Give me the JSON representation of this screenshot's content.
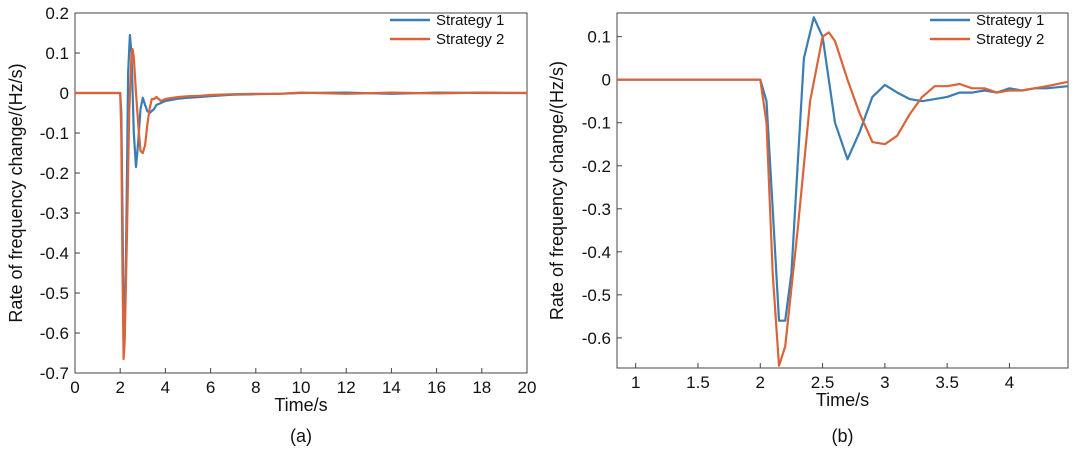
{
  "colors": {
    "strategy1": "#3A7DB3",
    "strategy2": "#D9643A"
  },
  "chart_data": [
    {
      "type": "line",
      "caption": "(a)",
      "xlabel": "Time/s",
      "ylabel": "Rate of frequency change/(Hz/s)",
      "xlim": [
        0,
        20
      ],
      "ylim": [
        -0.7,
        0.2
      ],
      "xticks": [
        "0",
        "2",
        "4",
        "6",
        "8",
        "10",
        "12",
        "14",
        "16",
        "18",
        "20"
      ],
      "yticks": [
        "0.2",
        "0.1",
        "0",
        "-0.1",
        "-0.2",
        "-0.3",
        "-0.4",
        "-0.5",
        "-0.6",
        "-0.7"
      ],
      "legend": "top-right",
      "grid": false,
      "series": [
        {
          "name": "Strategy 1",
          "x": [
            0,
            2.0,
            2.05,
            2.1,
            2.15,
            2.2,
            2.25,
            2.3,
            2.35,
            2.43,
            2.5,
            2.6,
            2.7,
            2.8,
            2.9,
            3.0,
            3.1,
            3.2,
            3.3,
            3.4,
            3.5,
            3.6,
            3.8,
            4.0,
            4.3,
            4.6,
            5.0,
            5.5,
            6.0,
            6.5,
            7.0,
            8.0,
            9.0,
            10.0,
            12.0,
            14.0,
            16.0,
            18.0,
            20.0
          ],
          "y": [
            0,
            0,
            -0.05,
            -0.3,
            -0.56,
            -0.56,
            -0.45,
            -0.2,
            0.05,
            0.145,
            0.1,
            -0.1,
            -0.185,
            -0.12,
            -0.04,
            -0.012,
            -0.03,
            -0.045,
            -0.05,
            -0.045,
            -0.04,
            -0.03,
            -0.025,
            -0.02,
            -0.017,
            -0.014,
            -0.012,
            -0.01,
            -0.008,
            -0.006,
            -0.004,
            -0.003,
            -0.002,
            0,
            0.001,
            -0.002,
            0.001,
            0,
            0
          ]
        },
        {
          "name": "Strategy 2",
          "x": [
            0,
            2.0,
            2.05,
            2.1,
            2.15,
            2.2,
            2.3,
            2.4,
            2.5,
            2.55,
            2.6,
            2.7,
            2.8,
            2.9,
            3.0,
            3.1,
            3.2,
            3.3,
            3.4,
            3.5,
            3.6,
            3.8,
            4.0,
            4.3,
            4.6,
            5.0,
            5.5,
            6.0,
            6.5,
            7.0,
            8.0,
            9.0,
            10.0,
            12.0,
            14.0,
            16.0,
            18.0,
            20.0
          ],
          "y": [
            0,
            0,
            -0.1,
            -0.45,
            -0.665,
            -0.62,
            -0.35,
            -0.05,
            0.1,
            0.11,
            0.09,
            0.0,
            -0.08,
            -0.145,
            -0.15,
            -0.13,
            -0.08,
            -0.04,
            -0.015,
            -0.015,
            -0.01,
            -0.02,
            -0.015,
            -0.012,
            -0.01,
            -0.008,
            -0.007,
            -0.005,
            -0.004,
            -0.003,
            -0.002,
            -0.002,
            0.001,
            -0.002,
            0.001,
            -0.001,
            0.001,
            0
          ]
        }
      ]
    },
    {
      "type": "line",
      "caption": "(b)",
      "xlabel": "Time/s",
      "ylabel": "Rate of frequency change/(Hz/s)",
      "xlim": [
        0.85,
        4.47
      ],
      "ylim": [
        -0.67,
        0.155
      ],
      "xticks": [
        "1",
        "1.5",
        "2",
        "2.5",
        "3",
        "3.5",
        "4"
      ],
      "yticks": [
        "0.1",
        "0",
        "-0.1",
        "-0.2",
        "-0.3",
        "-0.4",
        "-0.5",
        "-0.6"
      ],
      "legend": "top-right",
      "grid": false,
      "series": [
        {
          "name": "Strategy 1",
          "x": [
            0.85,
            2.0,
            2.05,
            2.1,
            2.15,
            2.2,
            2.25,
            2.3,
            2.35,
            2.43,
            2.5,
            2.6,
            2.7,
            2.8,
            2.9,
            3.0,
            3.1,
            3.2,
            3.3,
            3.4,
            3.5,
            3.6,
            3.7,
            3.8,
            3.9,
            4.0,
            4.1,
            4.2,
            4.3,
            4.47
          ],
          "y": [
            0,
            0,
            -0.05,
            -0.3,
            -0.56,
            -0.56,
            -0.45,
            -0.2,
            0.05,
            0.145,
            0.1,
            -0.1,
            -0.185,
            -0.12,
            -0.04,
            -0.012,
            -0.03,
            -0.045,
            -0.05,
            -0.045,
            -0.04,
            -0.03,
            -0.03,
            -0.025,
            -0.03,
            -0.02,
            -0.025,
            -0.02,
            -0.02,
            -0.015
          ]
        },
        {
          "name": "Strategy 2",
          "x": [
            0.85,
            2.0,
            2.05,
            2.1,
            2.15,
            2.2,
            2.3,
            2.4,
            2.5,
            2.55,
            2.6,
            2.7,
            2.8,
            2.9,
            3.0,
            3.1,
            3.2,
            3.3,
            3.4,
            3.5,
            3.6,
            3.7,
            3.8,
            3.9,
            4.0,
            4.1,
            4.2,
            4.3,
            4.47
          ],
          "y": [
            0,
            0,
            -0.1,
            -0.45,
            -0.665,
            -0.62,
            -0.35,
            -0.05,
            0.1,
            0.11,
            0.09,
            0.0,
            -0.08,
            -0.145,
            -0.15,
            -0.13,
            -0.08,
            -0.04,
            -0.015,
            -0.015,
            -0.01,
            -0.02,
            -0.02,
            -0.03,
            -0.025,
            -0.025,
            -0.02,
            -0.015,
            -0.005
          ]
        }
      ]
    }
  ]
}
